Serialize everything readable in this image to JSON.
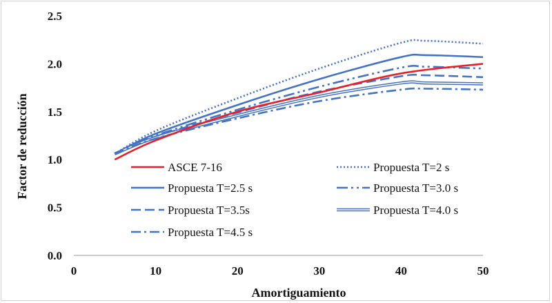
{
  "chart_data": {
    "type": "line",
    "title": "",
    "xlabel": "Amortiguamiento",
    "ylabel": "Factor de reducción",
    "xlim": [
      0,
      50
    ],
    "ylim": [
      0,
      2.5
    ],
    "xticks": [
      "0",
      "10",
      "20",
      "30",
      "40",
      "50"
    ],
    "yticks": [
      "0.0",
      "0.5",
      "1.0",
      "1.5",
      "2.0",
      "2.5"
    ],
    "grid": false,
    "legend_position": "inside-lower-right",
    "series": [
      {
        "name": "ASCE 7-16",
        "color": "#e8202a",
        "style": "solid",
        "x": [
          5,
          10,
          20,
          30,
          40,
          50
        ],
        "y": [
          1.0,
          1.2,
          1.5,
          1.7,
          1.9,
          2.0
        ]
      },
      {
        "name": "Propuesta T=2 s",
        "color": "#4472c4",
        "style": "dotted",
        "x": [
          5,
          10,
          20,
          30,
          40,
          43,
          50
        ],
        "y": [
          1.06,
          1.3,
          1.64,
          1.95,
          2.22,
          2.24,
          2.21
        ]
      },
      {
        "name": "Propuesta T=2.5 s",
        "color": "#4472c4",
        "style": "solid",
        "x": [
          5,
          10,
          20,
          30,
          40,
          43,
          50
        ],
        "y": [
          1.06,
          1.27,
          1.57,
          1.84,
          2.07,
          2.09,
          2.07
        ]
      },
      {
        "name": "Propuesta T=3.0 s",
        "color": "#4472c4",
        "style": "dash-dot-dot",
        "x": [
          5,
          10,
          20,
          30,
          40,
          43,
          50
        ],
        "y": [
          1.06,
          1.25,
          1.52,
          1.76,
          1.96,
          1.97,
          1.95
        ]
      },
      {
        "name": "Propuesta T=3.5s",
        "color": "#4472c4",
        "style": "dashed",
        "x": [
          5,
          10,
          20,
          30,
          40,
          43,
          50
        ],
        "y": [
          1.06,
          1.24,
          1.49,
          1.71,
          1.87,
          1.88,
          1.86
        ]
      },
      {
        "name": "Propuesta T=4.0 s",
        "color": "#4472c4",
        "style": "double",
        "x": [
          5,
          10,
          20,
          30,
          40,
          43,
          50
        ],
        "y": [
          1.06,
          1.23,
          1.46,
          1.66,
          1.8,
          1.8,
          1.79
        ]
      },
      {
        "name": "Propuesta T=4.5 s",
        "color": "#4472c4",
        "style": "dash-dot",
        "x": [
          5,
          10,
          20,
          30,
          40,
          43,
          50
        ],
        "y": [
          1.06,
          1.22,
          1.43,
          1.61,
          1.73,
          1.74,
          1.73
        ]
      }
    ]
  }
}
